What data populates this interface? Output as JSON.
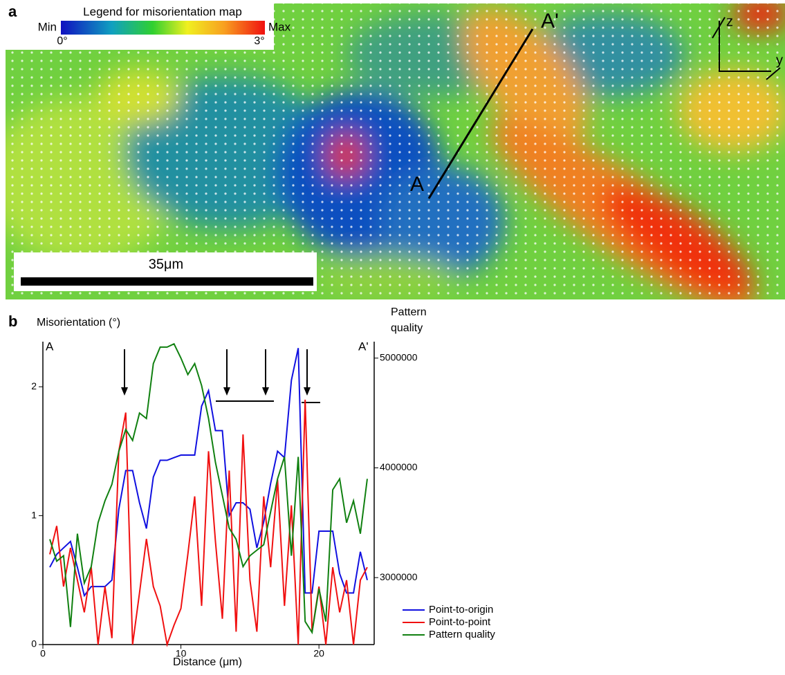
{
  "panel_a": {
    "label": "a",
    "legend_title": "Legend for misorientation map",
    "min_label": "Min",
    "max_label": "Max",
    "min_value": "0°",
    "max_value": "3°",
    "scale_bar": "35μm",
    "point_start": "A",
    "point_end": "A'",
    "axis_vertical": "z",
    "axis_horizontal": "y"
  },
  "chart_data": {
    "type": "line",
    "panel_label": "b",
    "ylabel": "Misorientation (°)",
    "y2label": [
      "Pattern",
      "quality"
    ],
    "xlabel": "Distance (μm)",
    "start_label": "A",
    "end_label": "A'",
    "x": [
      0.5,
      1,
      1.5,
      2,
      2.5,
      3,
      3.5,
      4,
      4.5,
      5,
      5.5,
      6,
      6.5,
      7,
      7.5,
      8,
      8.5,
      9,
      9.5,
      10,
      10.5,
      11,
      11.5,
      12,
      12.5,
      13,
      13.5,
      14,
      14.5,
      15,
      15.5,
      16,
      16.5,
      17,
      17.5,
      18,
      18.5,
      19,
      19.5,
      20,
      20.5,
      21,
      21.5,
      22,
      22.5,
      23,
      23.5
    ],
    "series": [
      {
        "name": "Point-to-origin",
        "color": "#1010e0",
        "values": [
          0.6,
          0.7,
          0.75,
          0.8,
          0.6,
          0.38,
          0.45,
          0.45,
          0.45,
          0.5,
          1.05,
          1.35,
          1.35,
          1.1,
          0.9,
          1.3,
          1.43,
          1.43,
          1.45,
          1.47,
          1.47,
          1.47,
          1.85,
          1.97,
          1.66,
          1.66,
          1.0,
          1.1,
          1.1,
          1.05,
          0.75,
          0.95,
          1.25,
          1.5,
          1.45,
          2.05,
          2.3,
          0.4,
          0.4,
          0.88,
          0.88,
          0.88,
          0.55,
          0.4,
          0.4,
          0.72,
          0.5
        ]
      },
      {
        "name": "Point-to-point",
        "color": "#f01010",
        "values": [
          0.7,
          0.92,
          0.45,
          0.75,
          0.5,
          0.25,
          0.6,
          0.0,
          0.45,
          0.05,
          1.5,
          1.8,
          0.0,
          0.4,
          0.82,
          0.45,
          0.3,
          0.0,
          0.15,
          0.28,
          0.7,
          1.15,
          0.3,
          1.5,
          0.8,
          0.2,
          1.35,
          0.1,
          1.63,
          0.5,
          0.1,
          1.15,
          0.6,
          1.28,
          0.3,
          1.08,
          0.0,
          1.9,
          0.1,
          0.45,
          0.0,
          0.6,
          0.25,
          0.5,
          0.0,
          0.5,
          0.6
        ]
      },
      {
        "name": "Pattern quality",
        "color": "#108010",
        "axis": "y2",
        "values": [
          3350000,
          3150000,
          3200000,
          2550000,
          3400000,
          2950000,
          3100000,
          3500000,
          3700000,
          3850000,
          4150000,
          4350000,
          4250000,
          4500000,
          4450000,
          4950000,
          5100000,
          5100000,
          5130000,
          5000000,
          4850000,
          4950000,
          4750000,
          4450000,
          4050000,
          3750000,
          3450000,
          3350000,
          3100000,
          3200000,
          3250000,
          3300000,
          3600000,
          3900000,
          4100000,
          3200000,
          4100000,
          2600000,
          2500000,
          2900000,
          2600000,
          3800000,
          3900000,
          3500000,
          3700000,
          3400000,
          3900000
        ]
      }
    ],
    "xlim": [
      0,
      24
    ],
    "xticks": [
      0,
      10,
      20
    ],
    "ylim": [
      0,
      2.35
    ],
    "yticks": [
      0,
      1,
      2
    ],
    "y2lim": [
      2390000,
      5150000
    ],
    "y2ticks": [
      3000000,
      4000000,
      5000000
    ],
    "legend": "lower right"
  }
}
